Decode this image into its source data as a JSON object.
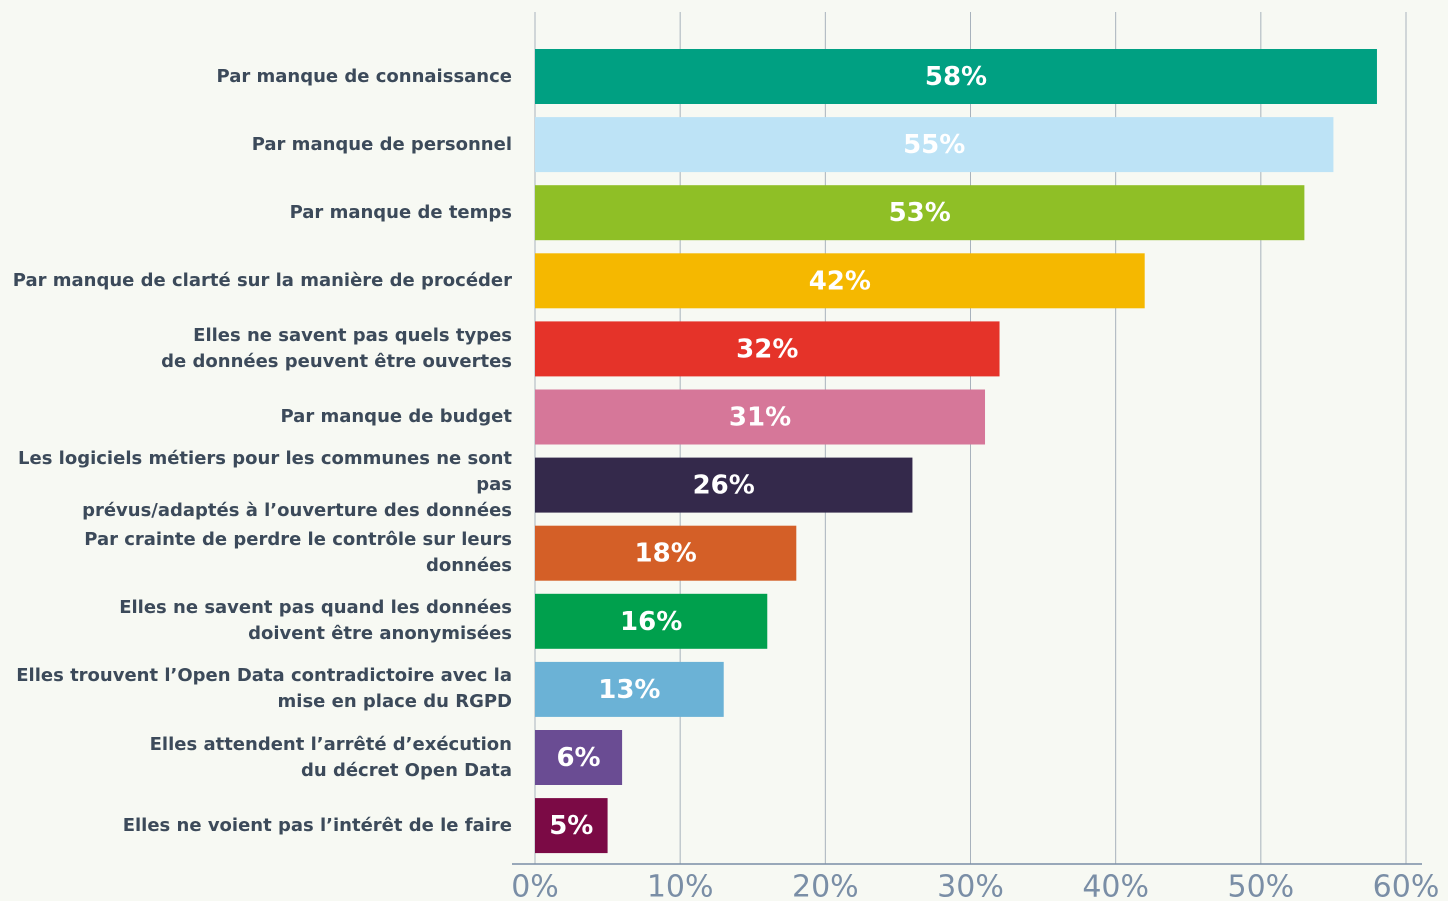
{
  "chart_data": {
    "type": "barh",
    "categories": [
      "Par manque de connaissance",
      "Par manque de personnel",
      "Par manque de temps",
      "Par manque de clarté sur la manière de procéder",
      "Elles ne savent pas quels types\nde données peuvent être ouvertes",
      "Par manque de budget",
      "Les logiciels métiers pour les communes ne sont pas\nprévus/adaptés à l’ouverture des données",
      "Par crainte de perdre le contrôle sur leurs données",
      "Elles ne savent pas quand les données\ndoivent être anonymisées",
      "Elles trouvent l’Open Data contradictoire avec la\nmise en place du RGPD",
      "Elles attendent l’arrêté d’exécution\ndu décret Open Data",
      "Elles ne voient pas l’intérêt de le faire"
    ],
    "values": [
      58,
      55,
      53,
      42,
      32,
      31,
      26,
      18,
      16,
      13,
      6,
      5
    ],
    "value_labels": [
      "58%",
      "55%",
      "53%",
      "42%",
      "32%",
      "31%",
      "26%",
      "18%",
      "16%",
      "13%",
      "6%",
      "5%"
    ],
    "colors": [
      "#00a082",
      "#bde3f6",
      "#8fbf26",
      "#f5b800",
      "#e53329",
      "#d67799",
      "#34294b",
      "#d45f27",
      "#00a04d",
      "#6bb2d6",
      "#6a4c93",
      "#7b0a45"
    ],
    "xlim": [
      0,
      60
    ],
    "xticks": [
      {
        "value": 0,
        "label": "0%"
      },
      {
        "value": 10,
        "label": "10%"
      },
      {
        "value": 20,
        "label": "20%"
      },
      {
        "value": 30,
        "label": "30%"
      },
      {
        "value": 40,
        "label": "40%"
      },
      {
        "value": 50,
        "label": "50%"
      },
      {
        "value": 60,
        "label": "60%"
      }
    ],
    "grid": true
  }
}
